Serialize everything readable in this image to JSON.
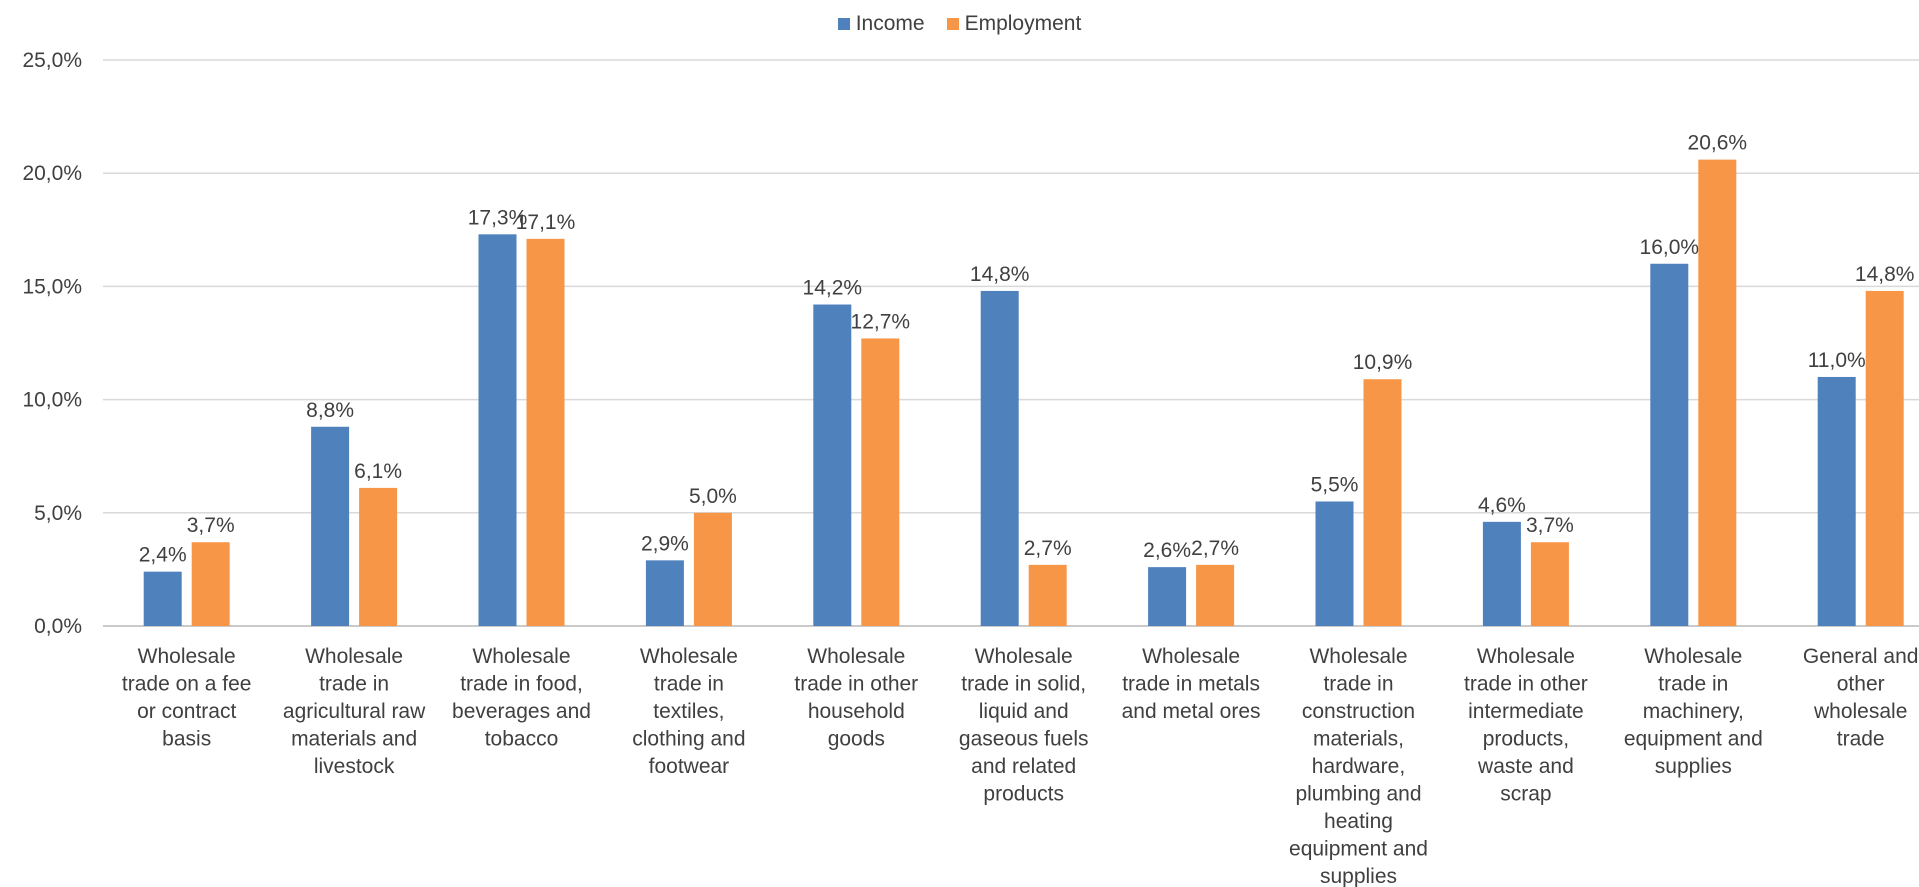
{
  "chart_data": {
    "type": "bar",
    "categories": [
      [
        "Wholesale",
        "trade on a fee",
        "or contract",
        "basis"
      ],
      [
        "Wholesale",
        "trade in",
        "agricultural raw",
        "materials and",
        "livestock"
      ],
      [
        "Wholesale",
        "trade in food,",
        "beverages and",
        "tobacco"
      ],
      [
        "Wholesale",
        "trade in",
        "textiles,",
        "clothing and",
        "footwear"
      ],
      [
        "Wholesale",
        "trade in other",
        "household",
        "goods"
      ],
      [
        "Wholesale",
        "trade in solid,",
        "liquid and",
        "gaseous fuels",
        "and related",
        "products"
      ],
      [
        "Wholesale",
        "trade in metals",
        "and metal ores"
      ],
      [
        "Wholesale",
        "trade in",
        "construction",
        "materials,",
        "hardware,",
        "plumbing and",
        "heating",
        "equipment and",
        "supplies"
      ],
      [
        "Wholesale",
        "trade in other",
        "intermediate",
        "products,",
        "waste and",
        "scrap"
      ],
      [
        "Wholesale",
        "trade in",
        "machinery,",
        "equipment and",
        "supplies"
      ],
      [
        "General and",
        "other",
        "wholesale",
        "trade"
      ]
    ],
    "series": [
      {
        "name": "Income",
        "color": "#4f81bd",
        "values": [
          2.4,
          8.8,
          17.3,
          2.9,
          14.2,
          14.8,
          2.6,
          5.5,
          4.6,
          16.0,
          11.0
        ],
        "labels": [
          "2,4%",
          "8,8%",
          "17,3%",
          "2,9%",
          "14,2%",
          "14,8%",
          "2,6%",
          "5,5%",
          "4,6%",
          "16,0%",
          "11,0%"
        ]
      },
      {
        "name": "Employment",
        "color": "#f79646",
        "values": [
          3.7,
          6.1,
          17.1,
          5.0,
          12.7,
          2.7,
          2.7,
          10.9,
          3.7,
          20.6,
          14.8
        ],
        "labels": [
          "3,7%",
          "6,1%",
          "17,1%",
          "5,0%",
          "12,7%",
          "2,7%",
          "2,7%",
          "10,9%",
          "3,7%",
          "20,6%",
          "14,8%"
        ]
      }
    ],
    "ylim": [
      0,
      25
    ],
    "yticks": [
      0,
      5,
      10,
      15,
      20,
      25
    ],
    "ytick_labels": [
      "0,0%",
      "5,0%",
      "10,0%",
      "15,0%",
      "20,0%",
      "25,0%"
    ],
    "grid": true,
    "legend_position": "top-center",
    "title": "",
    "xlabel": "",
    "ylabel": ""
  }
}
